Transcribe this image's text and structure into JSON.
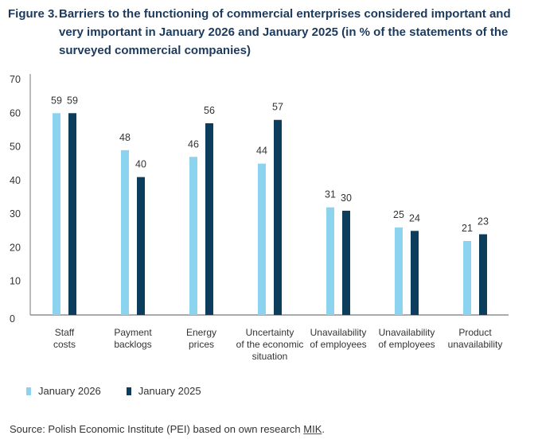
{
  "figure": {
    "number": "Figure 3.",
    "title": "Barriers to the functioning of commercial enterprises considered important and very important in January 2026 and January 2025 (in % of the statements of the surveyed commercial companies)"
  },
  "colors": {
    "series_2026": "#8bd3ef",
    "series_2025": "#0d3d5c",
    "title": "#1b3a5c",
    "axis": "#777777"
  },
  "chart_data": {
    "type": "bar",
    "title": "Barriers to the functioning of commercial enterprises considered important and very important in January 2026 and January 2025 (in % of the statements of the surveyed commercial companies)",
    "xlabel": "",
    "ylabel": "",
    "ylim": [
      0,
      70
    ],
    "yticks": [
      0,
      10,
      20,
      30,
      40,
      50,
      60,
      70
    ],
    "grid": false,
    "legend_position": "bottom-left",
    "categories": [
      [
        "Staff",
        "costs"
      ],
      [
        "Payment",
        "backlogs"
      ],
      [
        "Energy",
        "prices"
      ],
      [
        "Uncertainty",
        "of the economic",
        "situation"
      ],
      [
        "Unavailability",
        "of employees"
      ],
      [
        "Unavailability",
        "of employees"
      ],
      [
        "Product",
        "unavailability"
      ]
    ],
    "series": [
      {
        "name": "January 2026",
        "values": [
          59,
          48,
          46,
          44,
          31,
          25,
          21
        ]
      },
      {
        "name": "January 2025",
        "values": [
          59,
          40,
          56,
          57,
          30,
          24,
          23
        ]
      }
    ]
  },
  "legend": {
    "items": [
      {
        "label": "January 2026"
      },
      {
        "label": "January 2025"
      }
    ]
  },
  "source": {
    "prefix": "Source: Polish Economic Institute (PEI) based on own research ",
    "link": "MIK",
    "suffix": "."
  }
}
